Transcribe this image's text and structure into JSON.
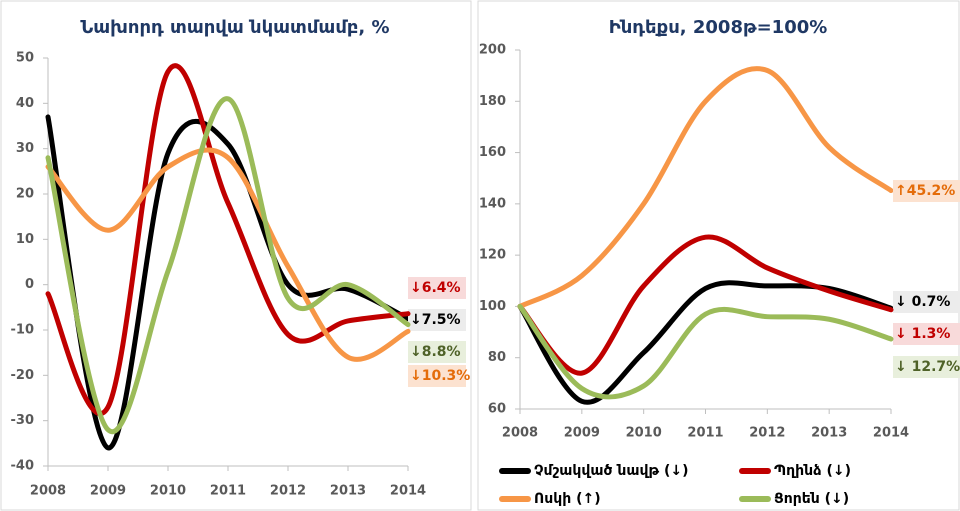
{
  "chart_data": [
    {
      "type": "line",
      "title": "Նախորդ տարվա նկատմամբ, %",
      "x": [
        2008,
        2009,
        2010,
        2011,
        2012,
        2013,
        2014
      ],
      "xlim": [
        2008,
        2014
      ],
      "xticks": [
        2008,
        2009,
        2010,
        2011,
        2012,
        2013,
        2014
      ],
      "ylim": [
        -40,
        50
      ],
      "yticks": [
        -40,
        -30,
        -20,
        -10,
        0,
        10,
        20,
        30,
        40,
        50
      ],
      "series": [
        {
          "color": "#000000",
          "values": [
            37,
            -36,
            29,
            31,
            0,
            -1,
            -7.5
          ],
          "end_label": "↓7.5%"
        },
        {
          "color": "#c00000",
          "values": [
            -2,
            -27,
            47,
            18,
            -11,
            -8,
            -6.4
          ],
          "end_label": "↓6.4%"
        },
        {
          "color": "#f79646",
          "values": [
            26,
            12,
            26,
            28,
            4,
            -16,
            -10.3
          ],
          "end_label": "↓10.3%"
        },
        {
          "color": "#9bbb59",
          "values": [
            28,
            -32,
            3,
            41,
            -3,
            0,
            -8.8
          ],
          "end_label": "↓8.8%"
        }
      ]
    },
    {
      "type": "line",
      "title": "Ինդեքս, 2008թ=100%",
      "x": [
        2008,
        2009,
        2010,
        2011,
        2012,
        2013,
        2014
      ],
      "xlim": [
        2008,
        2014
      ],
      "xticks": [
        2008,
        2009,
        2010,
        2011,
        2012,
        2013,
        2014
      ],
      "ylim": [
        60,
        200
      ],
      "yticks": [
        60,
        80,
        100,
        120,
        140,
        160,
        180,
        200
      ],
      "series": [
        {
          "name": "Չմշակված նավթ (↓)",
          "color": "#000000",
          "values": [
            100,
            63,
            82,
            107,
            108,
            107,
            99.3
          ],
          "end_label": "↓ 0.7%"
        },
        {
          "name": "Պղինձ (↓)",
          "color": "#c00000",
          "values": [
            100,
            74,
            108,
            127,
            115,
            106,
            98.7
          ],
          "end_label": "↓ 1.3%"
        },
        {
          "name": "Ոսկի (↑)",
          "color": "#f79646",
          "values": [
            100,
            112,
            140,
            180,
            192,
            162,
            145.2
          ],
          "end_label": "↑45.2%"
        },
        {
          "name": "Ցորեն (↓)",
          "color": "#9bbb59",
          "values": [
            100,
            68,
            69,
            97,
            96,
            95,
            87.3
          ],
          "end_label": "↓ 12.7%"
        }
      ]
    }
  ]
}
